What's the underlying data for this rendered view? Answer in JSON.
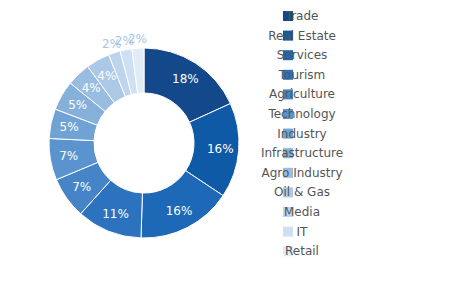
{
  "chart_data": {
    "type": "pie",
    "categories": [
      "Trade",
      "Real Estate",
      "Services",
      "Tourism",
      "Agriculture",
      "Technology",
      "Industry",
      "Infrastructure",
      "Agro Industry",
      "Oil & Gas",
      "Media",
      "IT",
      "Retail"
    ],
    "values": [
      18,
      16,
      16,
      11,
      7,
      7,
      5,
      5,
      4,
      4,
      2,
      2,
      2
    ],
    "value_labels": [
      "18%",
      "16%",
      "16%",
      "11%",
      "7%",
      "7%",
      "5%",
      "5%",
      "4%",
      "4%",
      "2%",
      "2%",
      "2%"
    ],
    "colors": [
      "#13488a",
      "#0f5aa6",
      "#1e68b8",
      "#2c72bf",
      "#4584c7",
      "#5a93cd",
      "#70a3d4",
      "#84b0da",
      "#98bde0",
      "#abc9e6",
      "#bdd5ec",
      "#cfe0f2",
      "#e1ecf7"
    ],
    "data_labels": true,
    "legend": "right"
  }
}
